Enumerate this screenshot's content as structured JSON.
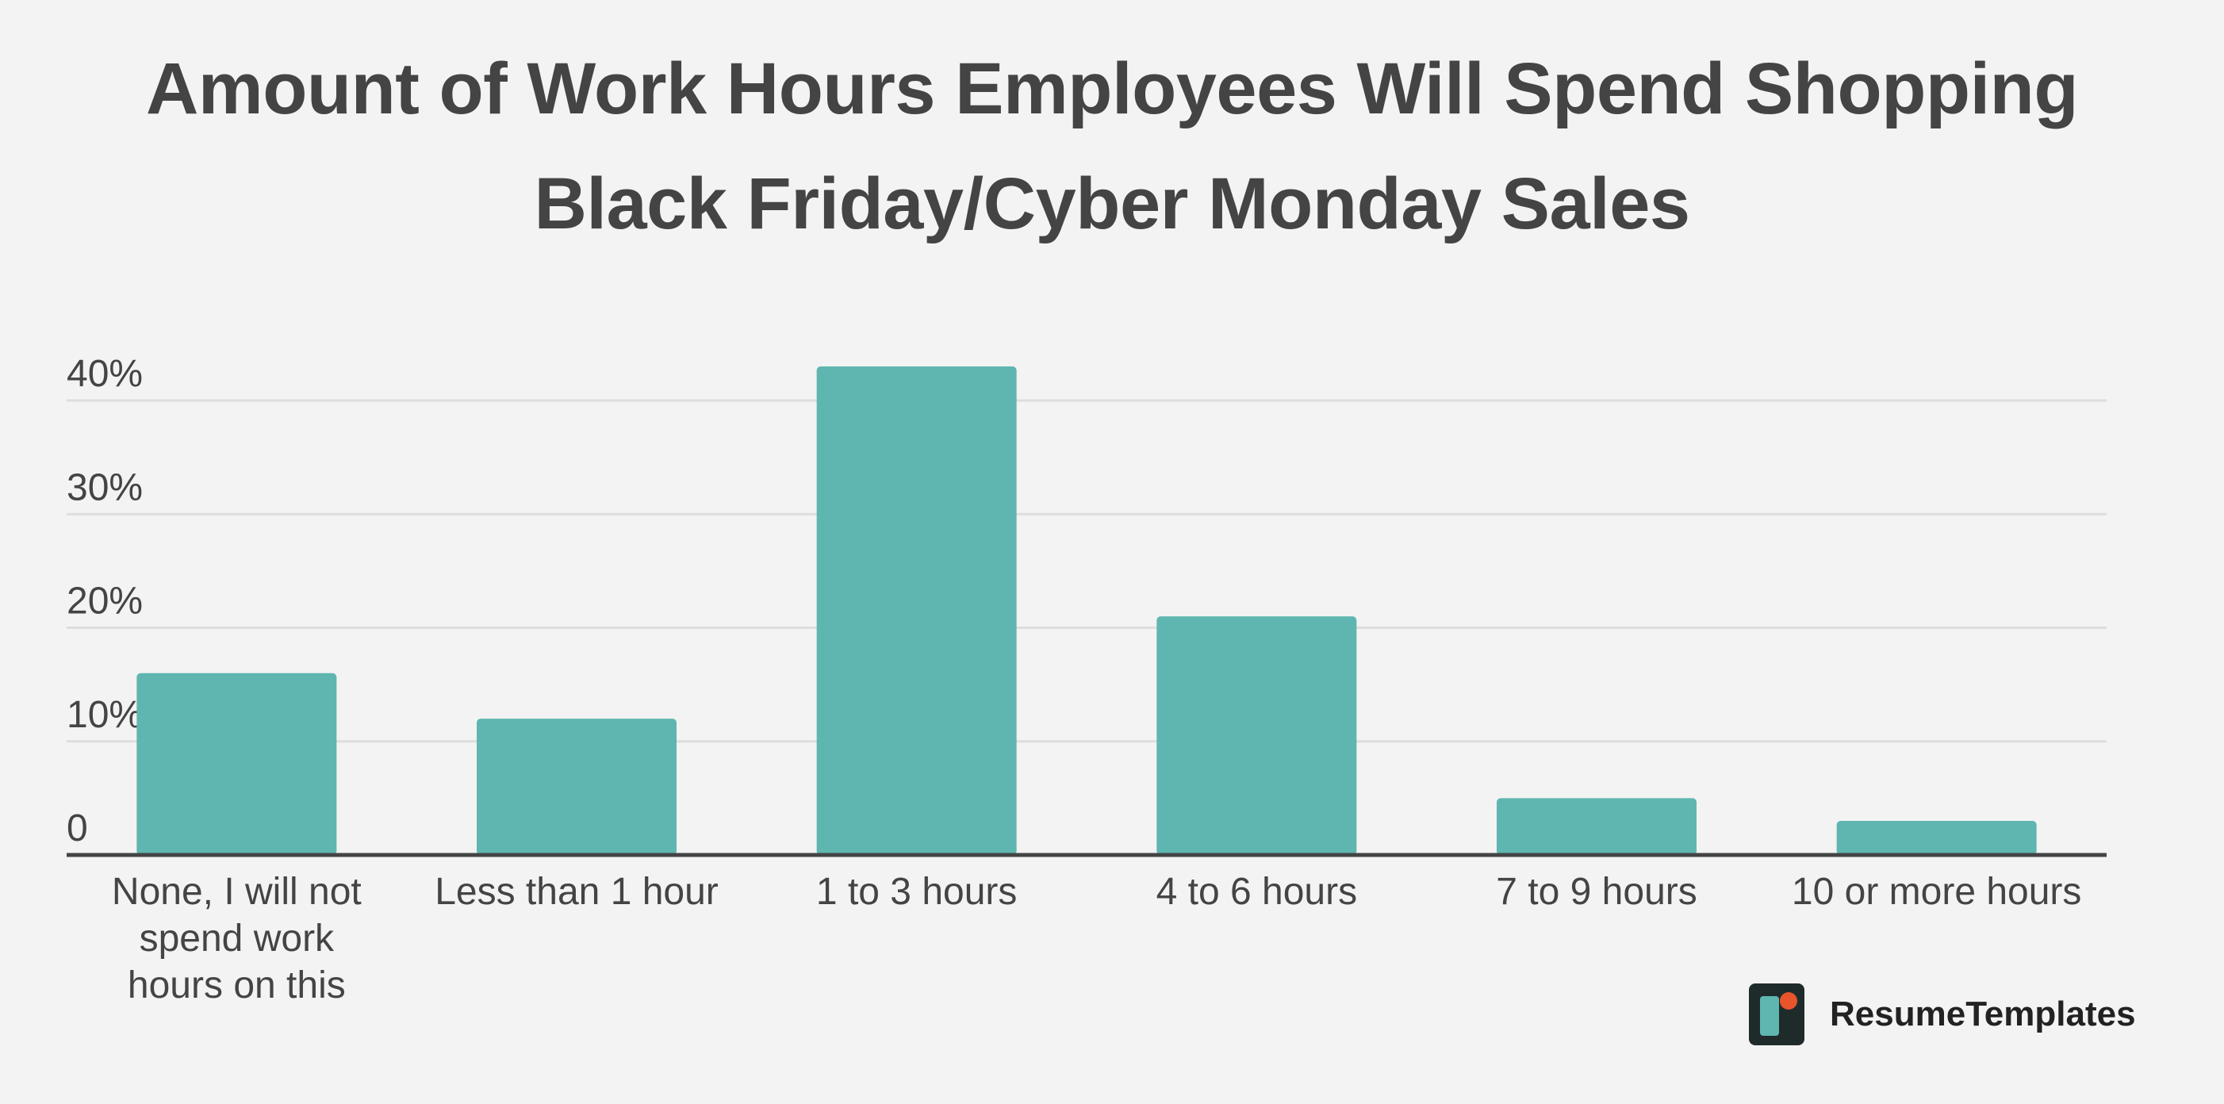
{
  "colors": {
    "background": "#f3f3f3",
    "bar": "#5fb6b0",
    "grid": "#dddddd",
    "axis": "#444444",
    "text": "#444444"
  },
  "brand": {
    "name": "ResumeTemplates",
    "logo_icon": "resume-templates-logo-icon"
  },
  "chart_data": {
    "type": "bar",
    "title": "Amount of Work Hours Employees Will Spend Shopping Black Friday/Cyber Monday Sales",
    "title_lines": [
      "Amount of Work Hours Employees Will Spend Shopping",
      "Black Friday/Cyber Monday Sales"
    ],
    "categories": [
      "None, I will not spend work hours on this",
      "Less than 1 hour",
      "1 to 3 hours",
      "4 to 6 hours",
      "7 to 9 hours",
      "10 or more hours"
    ],
    "category_lines": [
      [
        "None, I will not",
        "spend work",
        "hours on this"
      ],
      [
        "Less than 1 hour"
      ],
      [
        "1 to 3 hours"
      ],
      [
        "4 to 6 hours"
      ],
      [
        "7 to 9 hours"
      ],
      [
        "10 or more hours"
      ]
    ],
    "values": [
      16,
      12,
      43,
      21,
      5,
      3
    ],
    "ylim": [
      0,
      40
    ],
    "yticks": [
      0,
      10,
      20,
      30,
      40
    ],
    "ytick_labels": [
      "0",
      "10%",
      "20%",
      "30%",
      "40%"
    ],
    "xlabel": "",
    "ylabel": "",
    "grid": true,
    "legend": "none"
  }
}
